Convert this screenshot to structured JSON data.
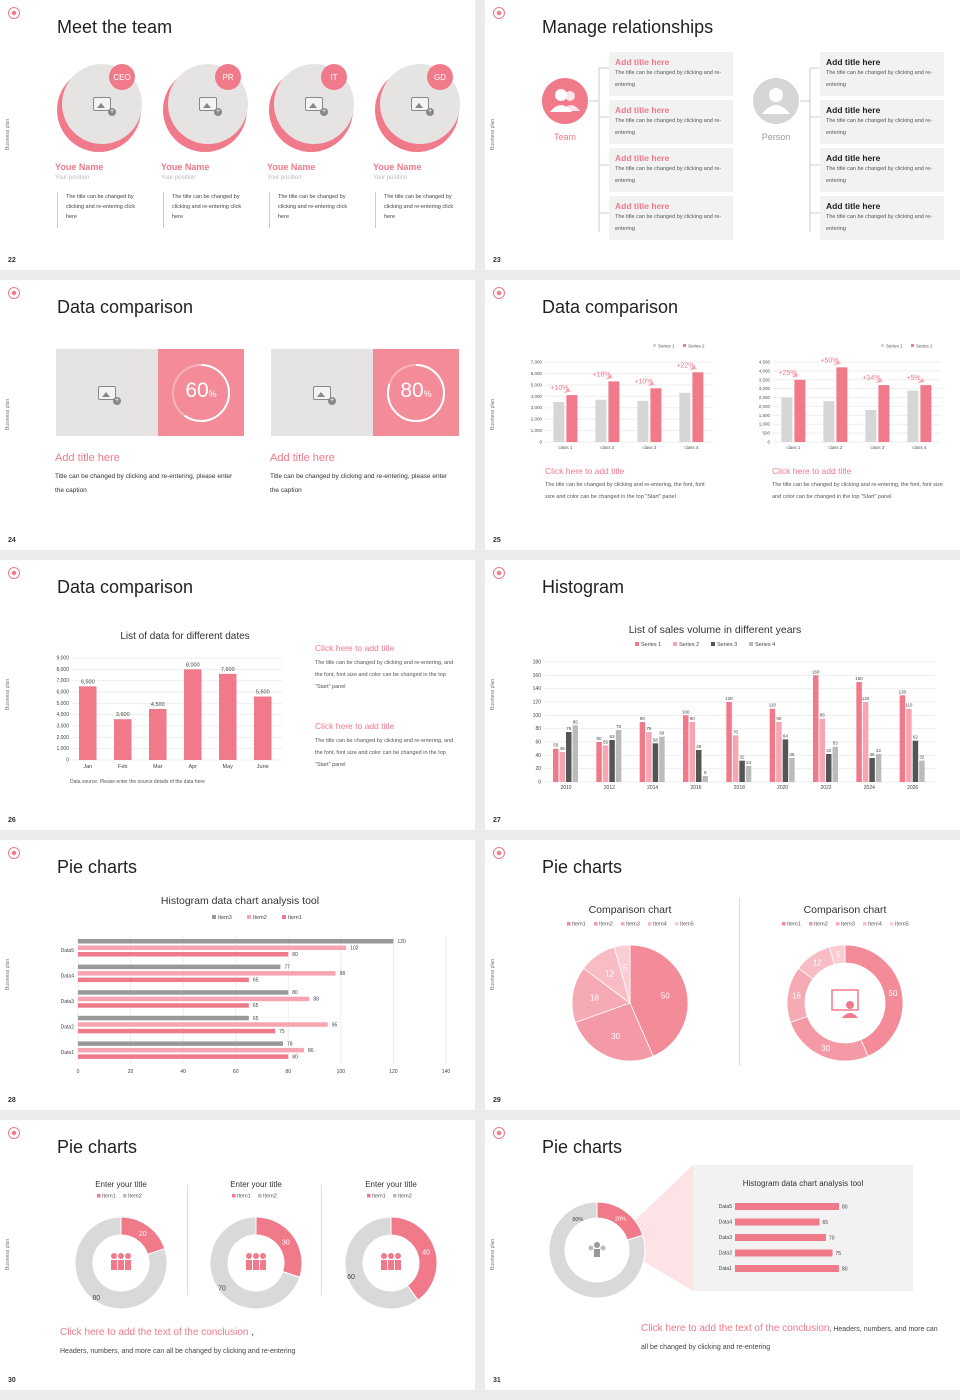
{
  "side_label": "Business plan",
  "s22": {
    "num": "22",
    "title": "Meet the team",
    "members": [
      {
        "badge": "CEO",
        "name": "Youe Name",
        "position": "Your position",
        "desc": "The title can be changed by clicking and re-entering click here"
      },
      {
        "badge": "PR",
        "name": "Youe Name",
        "position": "Your position",
        "desc": "The title can be changed by clicking and re-entering click here"
      },
      {
        "badge": "IT",
        "name": "Youe Name",
        "position": "Your position",
        "desc": "The title can be changed by clicking and re-entering click here"
      },
      {
        "badge": "GD",
        "name": "Youe Name",
        "position": "Your position",
        "desc": "The title can be changed by clicking and re-entering click here"
      }
    ]
  },
  "s23": {
    "num": "23",
    "title": "Manage relationships",
    "team_label": "Team",
    "person_label": "Person",
    "box_title": "Add title here",
    "box_desc": "The title can be changed by clicking and re-entering"
  },
  "s24": {
    "num": "24",
    "title": "Data comparison",
    "cards": [
      {
        "percent": "60",
        "unit": "%",
        "value": 0.6,
        "title": "Add title here",
        "desc": "Title can be changed by clicking and re-entering, please enter the caption"
      },
      {
        "percent": "80",
        "unit": "%",
        "value": 0.8,
        "title": "Add title here",
        "desc": "Title can be changed by clicking and re-entering, please enter the caption"
      }
    ]
  },
  "s25": {
    "num": "25",
    "title": "Data comparison",
    "caption_title": "Click here to add title",
    "caption_desc": "The title can be changed by clicking and re-entering, the font, font size and color can be changed in the top \"Start\" panel"
  },
  "s26": {
    "num": "26",
    "title": "Data comparison",
    "chart_title": "List of data for different dates",
    "source": "Data source: Please enter the source details of the data here",
    "captions": [
      {
        "t": "Click here to add title",
        "d": "The title can be changed by clicking and re-entering, and the font, font size and color can be changed in the top \"Start\" panel"
      },
      {
        "t": "Click here to add title",
        "d": "The title can be changed by clicking and re-entering, and the font, font size and color can be changed in the top \"Start\" panel"
      }
    ]
  },
  "s27": {
    "num": "27",
    "title": "Histogram",
    "chart_title": "List of sales volume in different years"
  },
  "s28": {
    "num": "28",
    "title": "Pie charts",
    "chart_title": "Histogram data chart analysis tool"
  },
  "s29": {
    "num": "29",
    "title": "Pie charts",
    "left_title": "Comparison chart",
    "right_title": "Comparison chart"
  },
  "s30": {
    "num": "30",
    "title": "Pie charts",
    "donut_title": "Enter your title",
    "conclusion": "Click here to add the text of the conclusion",
    "conclusion_tail": ",",
    "sub": "Headers, numbers, and more can all be changed by clicking and re-entering"
  },
  "s31": {
    "num": "31",
    "title": "Pie charts",
    "panel_title": "Histogram data chart analysis tool",
    "conclusion": "Click here to add the text of the conclusion",
    "tail": ", Headers, numbers, and more can all be changed by clicking and re-entering"
  },
  "colors": {
    "accent": "#f07a8a",
    "light": "#f7a6b1",
    "grey": "#d6d6d6",
    "dark": "#555555"
  },
  "chart_data": [
    {
      "type": "bar",
      "id": "s25-left",
      "categories": [
        "class 1",
        "class 2",
        "class 3",
        "class 4"
      ],
      "series": [
        {
          "name": "Series 1",
          "values": [
            3500,
            3700,
            3600,
            4300
          ]
        },
        {
          "name": "Series 2",
          "values": [
            4100,
            5300,
            4700,
            6100
          ]
        }
      ],
      "annotations": [
        "+10%",
        "+18%",
        "+10%",
        "+22%"
      ],
      "ylim": [
        0,
        7000
      ],
      "yticks": [
        "0",
        "1,000",
        "2,000",
        "3,000",
        "4,000",
        "5,000",
        "6,000",
        "7,000"
      ]
    },
    {
      "type": "bar",
      "id": "s25-right",
      "categories": [
        "class 1",
        "class 2",
        "class 3",
        "class 4"
      ],
      "series": [
        {
          "name": "Series 1",
          "values": [
            2500,
            2300,
            1800,
            2900
          ]
        },
        {
          "name": "Series 2",
          "values": [
            3500,
            4200,
            3200,
            3200
          ]
        }
      ],
      "annotations": [
        "+25%",
        "+50%",
        "+34%",
        "+5%"
      ],
      "ylim": [
        0,
        4500
      ],
      "yticks": [
        "0",
        "500",
        "1,000",
        "1,500",
        "2,000",
        "2,500",
        "3,000",
        "3,500",
        "4,000",
        "4,500"
      ]
    },
    {
      "type": "bar",
      "id": "s26",
      "title": "List of data for different dates",
      "categories": [
        "Jan",
        "Feb",
        "Mar",
        "Apr",
        "May",
        "June"
      ],
      "values": [
        6500,
        3600,
        4500,
        8000,
        7600,
        5600
      ],
      "labels": [
        "6,500",
        "3,600",
        "4,500",
        "8,000",
        "7,600",
        "5,600"
      ],
      "ylim": [
        0,
        9000
      ],
      "yticks": [
        "0",
        "1,000",
        "2,000",
        "3,000",
        "4,000",
        "5,000",
        "6,000",
        "7,000",
        "8,000",
        "9,000"
      ]
    },
    {
      "type": "bar",
      "id": "s27",
      "title": "List of sales volume in different years",
      "categories": [
        "2010",
        "2012",
        "2014",
        "2016",
        "2018",
        "2020",
        "2022",
        "2024",
        "2026"
      ],
      "series": [
        {
          "name": "Series 1",
          "values": [
            50,
            60,
            90,
            100,
            120,
            110,
            160,
            150,
            130
          ]
        },
        {
          "name": "Series 2",
          "values": [
            45,
            55,
            75,
            90,
            70,
            90,
            95,
            120,
            110
          ]
        },
        {
          "name": "Series 3",
          "values": [
            75,
            63,
            58,
            48,
            32,
            64,
            42,
            36,
            62
          ]
        },
        {
          "name": "Series 4",
          "values": [
            85,
            78,
            68,
            9,
            24,
            36,
            53,
            42,
            32
          ]
        }
      ],
      "ylim": [
        0,
        180
      ],
      "yticks": [
        "0",
        "20",
        "40",
        "60",
        "80",
        "100",
        "120",
        "140",
        "160",
        "180"
      ]
    },
    {
      "type": "bar",
      "id": "s28",
      "orientation": "horizontal",
      "title": "Histogram data chart analysis tool",
      "categories": [
        "Data1",
        "Data2",
        "Data3",
        "Data4",
        "Data5"
      ],
      "series": [
        {
          "name": "Item1",
          "values": [
            80,
            75,
            65,
            65,
            80
          ]
        },
        {
          "name": "Item2",
          "values": [
            86,
            95,
            88,
            98,
            102
          ]
        },
        {
          "name": "Item3",
          "values": [
            78,
            65,
            80,
            77,
            120
          ]
        }
      ],
      "xlim": [
        0,
        140
      ],
      "xticks": [
        "0",
        "20",
        "40",
        "60",
        "80",
        "100",
        "120",
        "140"
      ]
    },
    {
      "type": "pie",
      "id": "s29-left",
      "title": "Comparison chart",
      "categories": [
        "Item1",
        "Item2",
        "Item3",
        "Item4",
        "Item5"
      ],
      "values": [
        50,
        30,
        18,
        12,
        5
      ]
    },
    {
      "type": "pie",
      "id": "s29-right",
      "title": "Comparison chart",
      "donut": true,
      "categories": [
        "Item1",
        "Item2",
        "Item3",
        "Item4",
        "Item5"
      ],
      "values": [
        50,
        30,
        18,
        12,
        5
      ]
    },
    {
      "type": "pie",
      "id": "s30-1",
      "title": "Enter your title",
      "donut": true,
      "categories": [
        "Item1",
        "Item2"
      ],
      "values": [
        20,
        80
      ]
    },
    {
      "type": "pie",
      "id": "s30-2",
      "title": "Enter your title",
      "donut": true,
      "categories": [
        "Item1",
        "Item2"
      ],
      "values": [
        30,
        70
      ]
    },
    {
      "type": "pie",
      "id": "s30-3",
      "title": "Enter your title",
      "donut": true,
      "categories": [
        "Item1",
        "Item2"
      ],
      "values": [
        40,
        60
      ]
    },
    {
      "type": "pie",
      "id": "s31-donut",
      "donut": true,
      "values": [
        20,
        80
      ],
      "labels": [
        "20%",
        "80%"
      ]
    },
    {
      "type": "bar",
      "id": "s31-bars",
      "orientation": "horizontal",
      "title": "Histogram data chart analysis tool",
      "categories": [
        "Data5",
        "Data4",
        "Data3",
        "Data2",
        "Data1"
      ],
      "values": [
        80,
        65,
        70,
        75,
        80
      ],
      "xlim": [
        0,
        100
      ]
    }
  ]
}
